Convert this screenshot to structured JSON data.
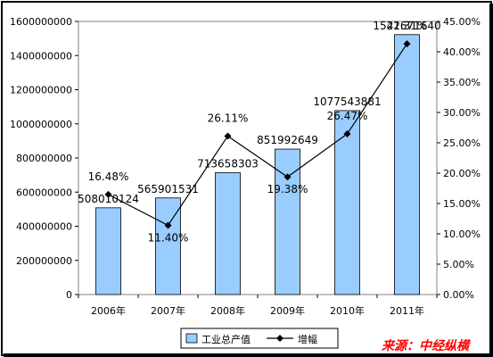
{
  "chart_data": {
    "type": "bar",
    "categories": [
      "2006年",
      "2007年",
      "2008年",
      "2009年",
      "2010年",
      "2011年"
    ],
    "series": [
      {
        "name": "工业总产值",
        "kind": "bar",
        "axis": "left",
        "values": [
          508010124,
          565901531,
          713658303,
          851992649,
          1077543881,
          1522671640
        ],
        "labels": [
          "508010124",
          "565901531",
          "713658303",
          "851992649",
          "1077543881",
          "1522671640"
        ],
        "color": "#99ccff"
      },
      {
        "name": "增幅",
        "kind": "line",
        "axis": "right",
        "values": [
          16.48,
          11.4,
          26.11,
          19.38,
          26.47,
          41.31
        ],
        "labels": [
          "16.48%",
          "11.40%",
          "26.11%",
          "19.38%",
          "26.47%",
          "41.31%"
        ],
        "color": "#000000"
      }
    ],
    "y_left": {
      "min": 0,
      "max": 1600000000,
      "ticks": [
        "0",
        "200000000",
        "400000000",
        "600000000",
        "800000000",
        "1000000000",
        "1200000000",
        "1400000000",
        "1600000000"
      ]
    },
    "y_right": {
      "min": 0,
      "max": 45,
      "ticks": [
        "0.00%",
        "5.00%",
        "10.00%",
        "15.00%",
        "20.00%",
        "25.00%",
        "30.00%",
        "35.00%",
        "40.00%",
        "45.00%"
      ]
    },
    "grid": false,
    "legend_position": "bottom"
  },
  "source_text": "来源：中经纵横",
  "colors": {
    "frame": "#000000",
    "plot_border": "#808080",
    "bar_fill": "#99ccff",
    "bar_stroke": "#000000",
    "source": "#ff0000"
  }
}
